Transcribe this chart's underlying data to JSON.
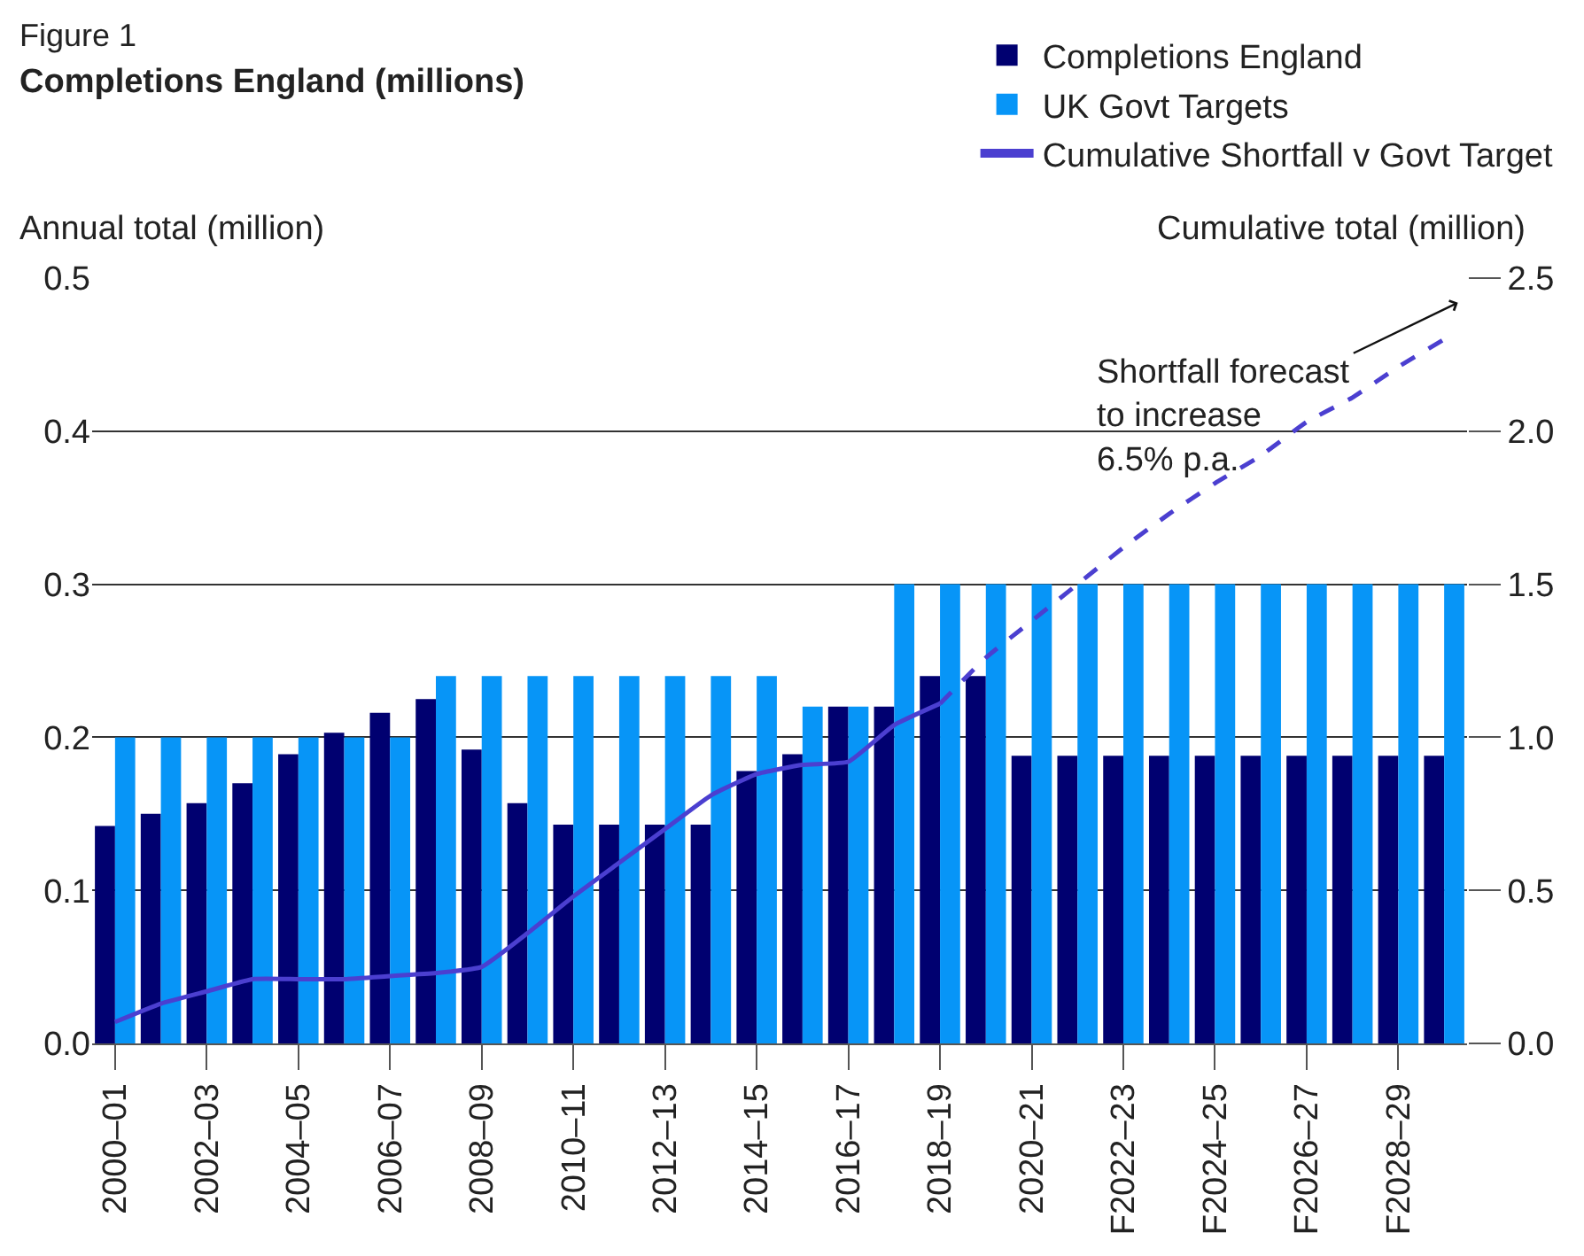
{
  "chart_data": {
    "type": "bar",
    "title": "Completions England (millions)",
    "categories": [
      "2000–01",
      null,
      "2002–03",
      null,
      "2004–05",
      null,
      "2006–07",
      null,
      "2008–09",
      null,
      "2010–11",
      null,
      "2012–13",
      null,
      "2014–15",
      null,
      "2016–17",
      null,
      "2018–19",
      null,
      "2020–21",
      null,
      "F2022–23",
      null,
      "F2024–25",
      null,
      "F2026–27",
      null,
      "F2028–29",
      null
    ],
    "series": [
      {
        "name": "Completions England",
        "color": "#000070",
        "values": [
          0.142,
          0.15,
          0.157,
          0.17,
          0.189,
          0.203,
          0.216,
          0.225,
          0.192,
          0.157,
          0.143,
          0.143,
          0.143,
          0.143,
          0.178,
          0.189,
          0.22,
          0.22,
          0.24,
          0.24,
          0.188,
          0.188,
          0.188,
          0.188,
          0.188,
          0.188,
          0.188,
          0.188,
          0.188,
          0.188
        ]
      },
      {
        "name": "UK Govt Targets",
        "color": "#0795f7",
        "values": [
          0.2,
          0.2,
          0.2,
          0.2,
          0.2,
          0.2,
          0.2,
          0.24,
          0.24,
          0.24,
          0.24,
          0.24,
          0.24,
          0.24,
          0.24,
          0.22,
          0.22,
          0.3,
          0.3,
          0.3,
          0.3,
          0.3,
          0.3,
          0.3,
          0.3,
          0.3,
          0.3,
          0.3,
          0.3,
          0.3
        ]
      },
      {
        "name": "Cumulative Shortfall v Govt Target",
        "type": "line",
        "axis": "y2",
        "line_style": "solid",
        "color": "#4b3fd0",
        "values": [
          0.07,
          0.13,
          0.17,
          0.21,
          0.21,
          0.21,
          0.22,
          0.23,
          0.25,
          0.36,
          0.48,
          0.59,
          0.7,
          0.81,
          0.88,
          0.91,
          0.92,
          1.04,
          1.11,
          null,
          null,
          null,
          null,
          null,
          null,
          null,
          null,
          null,
          null,
          null
        ]
      },
      {
        "type": "line",
        "axis": "y2",
        "line_style": "dashed",
        "color": "#4b3fd0",
        "values": [
          null,
          null,
          null,
          null,
          null,
          null,
          null,
          null,
          null,
          null,
          null,
          null,
          null,
          null,
          null,
          null,
          null,
          null,
          1.11,
          1.26,
          1.38,
          1.5,
          1.62,
          1.73,
          1.83,
          1.92,
          2.03,
          2.11,
          2.21,
          2.3
        ]
      }
    ],
    "ylim": [
      0,
      0.5
    ],
    "yticks": [
      {
        "value": 0,
        "label": "0.0"
      },
      0.1,
      0.2,
      0.3,
      0.4,
      0.5
    ],
    "y2lim": [
      0,
      2.5
    ],
    "y2ticks": [
      {
        "value": 0,
        "label": "0.0"
      },
      0.5,
      {
        "value": 1,
        "label": "1.0"
      },
      1.5,
      {
        "value": 2,
        "label": "2.0"
      },
      2.5
    ],
    "ylabel": "Annual total (million)",
    "y2label": "Cumulative total (million)",
    "annotations": [
      "Figure 1",
      "Shortfall forecast\nto increase\n6.5% p.a."
    ],
    "grid": "y",
    "legend": "top right",
    "marker": "none"
  }
}
